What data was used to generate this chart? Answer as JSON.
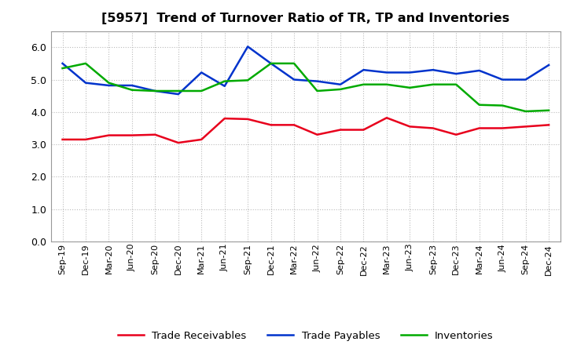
{
  "title": "[5957]  Trend of Turnover Ratio of TR, TP and Inventories",
  "x_labels": [
    "Sep-19",
    "Dec-19",
    "Mar-20",
    "Jun-20",
    "Sep-20",
    "Dec-20",
    "Mar-21",
    "Jun-21",
    "Sep-21",
    "Dec-21",
    "Mar-22",
    "Jun-22",
    "Sep-22",
    "Dec-22",
    "Mar-23",
    "Jun-23",
    "Sep-23",
    "Dec-23",
    "Mar-24",
    "Jun-24",
    "Sep-24",
    "Dec-24"
  ],
  "trade_receivables": [
    3.15,
    3.15,
    3.28,
    3.28,
    3.3,
    3.05,
    3.15,
    3.8,
    3.78,
    3.6,
    3.6,
    3.3,
    3.45,
    3.45,
    3.82,
    3.55,
    3.5,
    3.3,
    3.5,
    3.5,
    3.55,
    3.6
  ],
  "trade_payables": [
    5.5,
    4.9,
    4.82,
    4.82,
    4.65,
    4.55,
    5.22,
    4.8,
    6.02,
    5.5,
    5.0,
    4.95,
    4.85,
    5.3,
    5.22,
    5.22,
    5.3,
    5.18,
    5.28,
    5.0,
    5.0,
    5.45
  ],
  "inventories": [
    5.35,
    5.5,
    4.9,
    4.68,
    4.65,
    4.65,
    4.65,
    4.95,
    4.98,
    5.5,
    5.5,
    4.65,
    4.7,
    4.85,
    4.85,
    4.75,
    4.85,
    4.85,
    4.22,
    4.2,
    4.02,
    4.05
  ],
  "color_tr": "#e8001c",
  "color_tp": "#0033cc",
  "color_inv": "#00aa00",
  "ylim": [
    0.0,
    6.5
  ],
  "yticks": [
    0.0,
    1.0,
    2.0,
    3.0,
    4.0,
    5.0,
    6.0
  ],
  "legend_labels": [
    "Trade Receivables",
    "Trade Payables",
    "Inventories"
  ],
  "background_color": "#ffffff",
  "grid_color": "#bbbbbb",
  "line_width": 1.8
}
